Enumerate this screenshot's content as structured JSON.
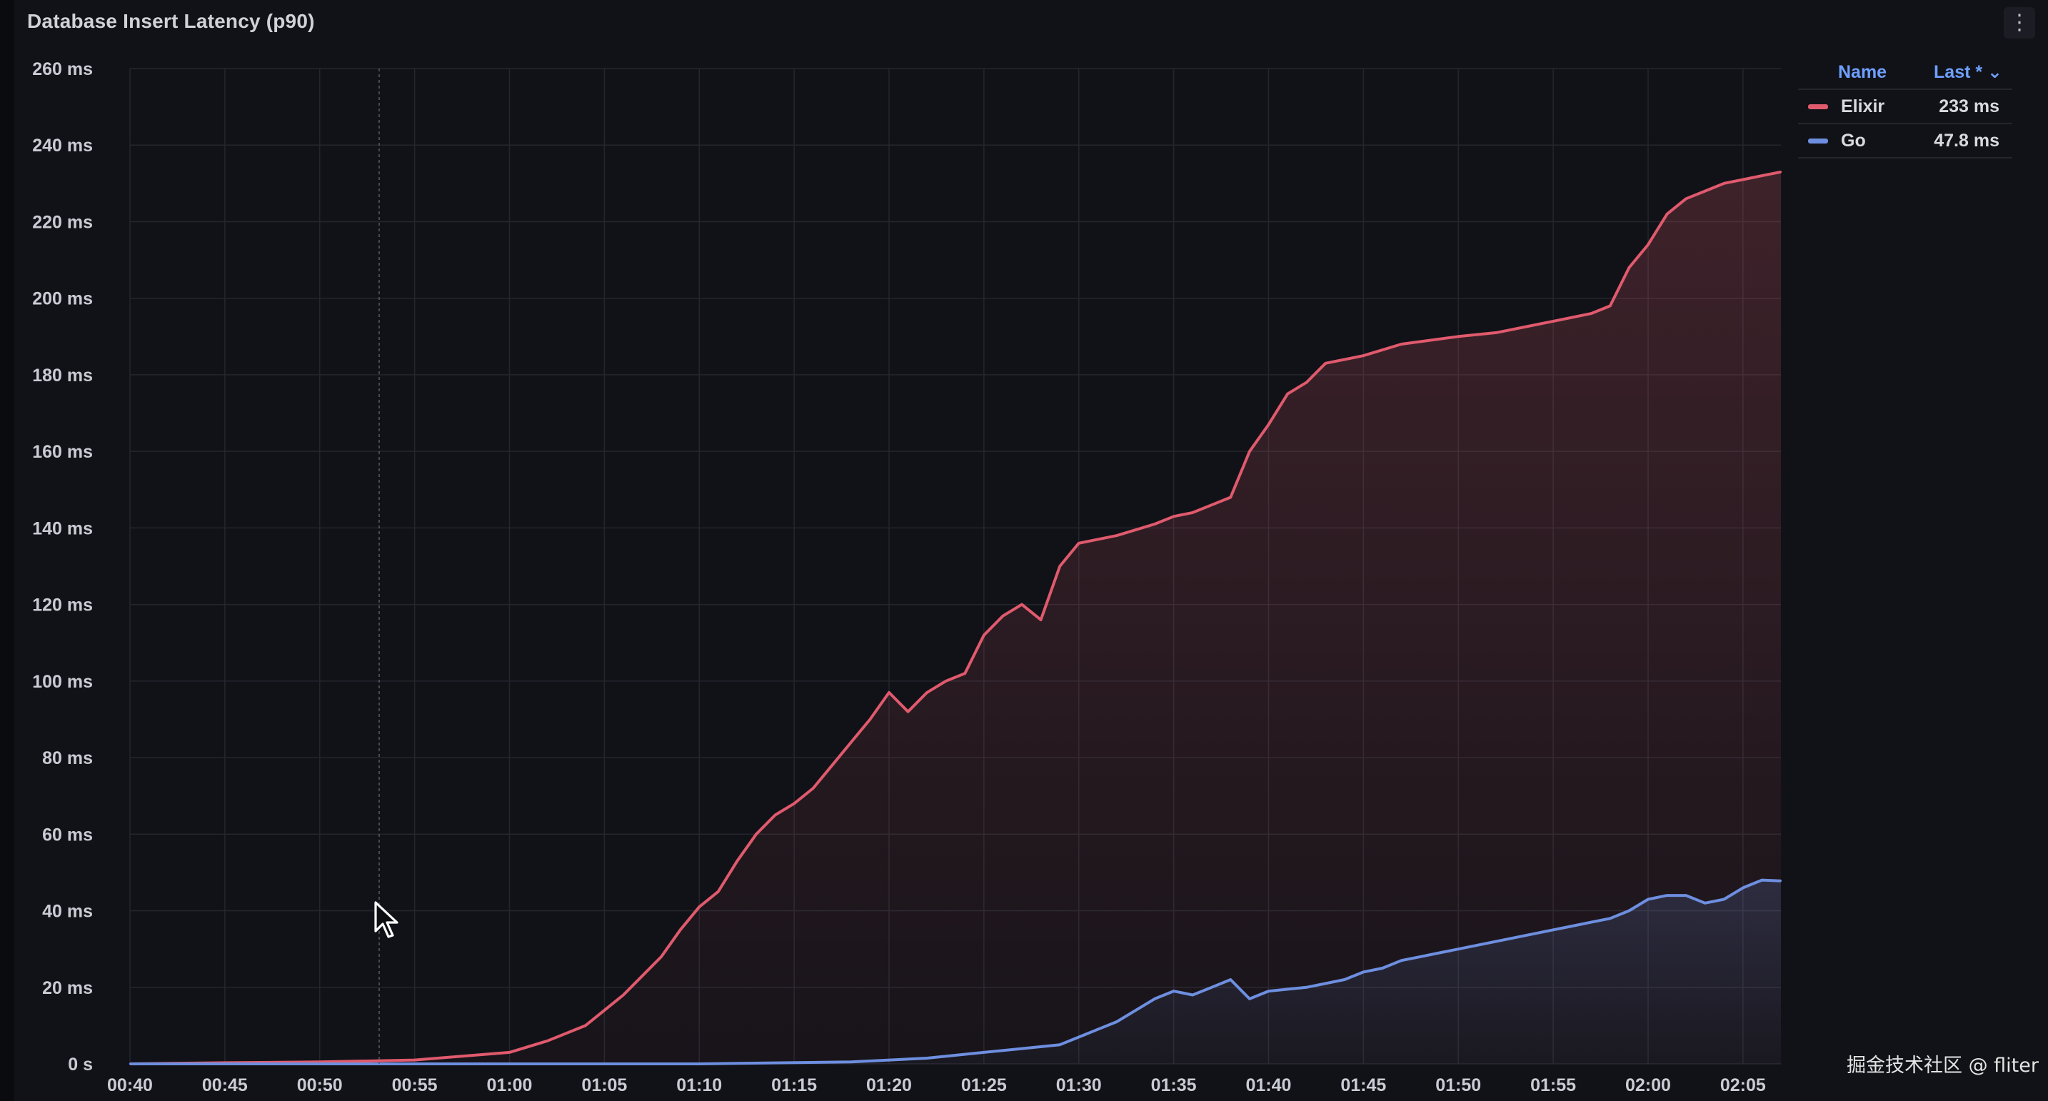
{
  "panel": {
    "title": "Database Insert Latency (p90)",
    "menu_icon": "vertical-ellipsis-icon",
    "menu_glyph": "⋮"
  },
  "legend": {
    "header_name": "Name",
    "header_last": "Last * ⌄",
    "items": [
      {
        "name": "Elixir",
        "value": "233 ms",
        "color": "#e05a6d"
      },
      {
        "name": "Go",
        "value": "47.8 ms",
        "color": "#6e8fe0"
      }
    ]
  },
  "watermark": "掘金技术社区 @ fliter",
  "chart_data": {
    "type": "area",
    "title": "Database Insert Latency (p90)",
    "xlabel": "",
    "ylabel": "",
    "ylim": [
      0,
      260
    ],
    "y_unit": "ms",
    "y_ticks": [
      {
        "value": 0,
        "label": "0 s"
      },
      {
        "value": 20,
        "label": "20 ms"
      },
      {
        "value": 40,
        "label": "40 ms"
      },
      {
        "value": 60,
        "label": "60 ms"
      },
      {
        "value": 80,
        "label": "80 ms"
      },
      {
        "value": 100,
        "label": "100 ms"
      },
      {
        "value": 120,
        "label": "120 ms"
      },
      {
        "value": 140,
        "label": "140 ms"
      },
      {
        "value": 160,
        "label": "160 ms"
      },
      {
        "value": 180,
        "label": "180 ms"
      },
      {
        "value": 200,
        "label": "200 ms"
      },
      {
        "value": 220,
        "label": "220 ms"
      },
      {
        "value": 240,
        "label": "240 ms"
      },
      {
        "value": 260,
        "label": "260 ms"
      }
    ],
    "x_unit": "minutes",
    "xlim": [
      "00:40",
      "02:07"
    ],
    "x_ticks": [
      "00:40",
      "00:45",
      "00:50",
      "00:55",
      "01:00",
      "01:05",
      "01:10",
      "01:15",
      "01:20",
      "01:25",
      "01:30",
      "01:35",
      "01:40",
      "01:45",
      "01:50",
      "01:55",
      "02:00",
      "02:05"
    ],
    "grid": true,
    "legend_position": "right",
    "series": [
      {
        "name": "Elixir",
        "color": "#e05a6d",
        "x": [
          "00:40",
          "00:45",
          "00:50",
          "00:55",
          "01:00",
          "01:02",
          "01:04",
          "01:05",
          "01:06",
          "01:07",
          "01:08",
          "01:09",
          "01:10",
          "01:11",
          "01:12",
          "01:13",
          "01:14",
          "01:15",
          "01:16",
          "01:17",
          "01:18",
          "01:19",
          "01:20",
          "01:21",
          "01:22",
          "01:23",
          "01:24",
          "01:25",
          "01:26",
          "01:27",
          "01:28",
          "01:29",
          "01:30",
          "01:32",
          "01:34",
          "01:35",
          "01:36",
          "01:37",
          "01:38",
          "01:39",
          "01:40",
          "01:41",
          "01:42",
          "01:43",
          "01:45",
          "01:47",
          "01:50",
          "01:52",
          "01:55",
          "01:57",
          "01:58",
          "01:59",
          "02:00",
          "02:01",
          "02:02",
          "02:03",
          "02:04",
          "02:05",
          "02:06",
          "02:07"
        ],
        "values": [
          0,
          0.3,
          0.5,
          1,
          3,
          6,
          10,
          14,
          18,
          23,
          28,
          35,
          41,
          45,
          53,
          60,
          65,
          68,
          72,
          78,
          84,
          90,
          97,
          92,
          97,
          100,
          102,
          112,
          117,
          120,
          116,
          130,
          136,
          138,
          141,
          143,
          144,
          146,
          148,
          160,
          167,
          175,
          178,
          183,
          185,
          188,
          190,
          191,
          194,
          196,
          198,
          208,
          214,
          222,
          226,
          228,
          230,
          231,
          232,
          233
        ]
      },
      {
        "name": "Go",
        "color": "#6e8fe0",
        "x": [
          "00:40",
          "00:50",
          "01:00",
          "01:10",
          "01:18",
          "01:22",
          "01:25",
          "01:27",
          "01:29",
          "01:30",
          "01:31",
          "01:32",
          "01:33",
          "01:34",
          "01:35",
          "01:36",
          "01:37",
          "01:38",
          "01:39",
          "01:40",
          "01:42",
          "01:44",
          "01:45",
          "01:46",
          "01:47",
          "01:48",
          "01:49",
          "01:50",
          "01:51",
          "01:52",
          "01:53",
          "01:54",
          "01:55",
          "01:56",
          "01:57",
          "01:58",
          "01:59",
          "02:00",
          "02:01",
          "02:02",
          "02:03",
          "02:04",
          "02:05",
          "02:06",
          "02:07"
        ],
        "values": [
          0,
          0,
          0,
          0,
          0.5,
          1.5,
          3,
          4,
          5,
          7,
          9,
          11,
          14,
          17,
          19,
          18,
          20,
          22,
          17,
          19,
          20,
          22,
          24,
          25,
          27,
          28,
          29,
          30,
          31,
          32,
          33,
          34,
          35,
          36,
          37,
          38,
          40,
          43,
          44,
          44,
          42,
          43,
          46,
          48,
          47.8
        ]
      }
    ]
  }
}
